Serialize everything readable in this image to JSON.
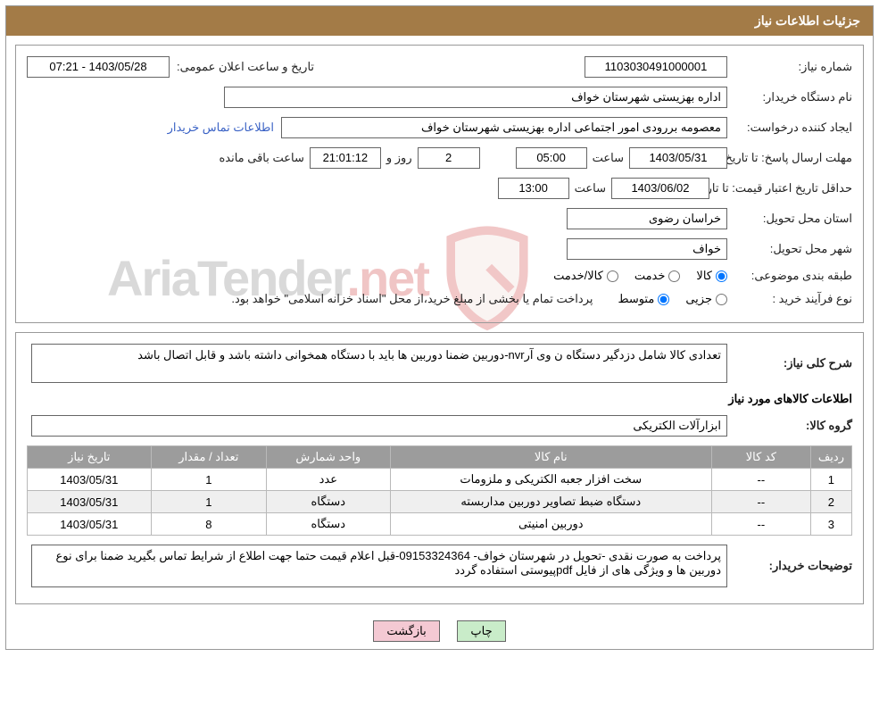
{
  "header": {
    "title": "جزئیات اطلاعات نیاز"
  },
  "top": {
    "need_no": {
      "label": "شماره نیاز:",
      "value": "1103030491000001"
    },
    "announce_dt": {
      "label": "تاریخ و ساعت اعلان عمومی:",
      "value": "1403/05/28 - 07:21"
    },
    "buyer_org": {
      "label": "نام دستگاه خریدار:",
      "value": "اداره بهزیستی شهرستان خواف"
    },
    "requester": {
      "label": "ایجاد کننده درخواست:",
      "value": "معصومه بررودی امور اجتماعی اداره بهزیستی شهرستان خواف"
    },
    "contact_link": "اطلاعات تماس خریدار",
    "deadline": {
      "label": "مهلت ارسال پاسخ:",
      "to_date_lbl": "تا تاریخ:",
      "date": "1403/05/31",
      "time_lbl": "ساعت",
      "time": "05:00",
      "days": "2",
      "days_lbl": "روز و",
      "remain": "21:01:12",
      "remain_lbl": "ساعت باقی مانده"
    },
    "validity": {
      "label": "حداقل تاریخ اعتبار قیمت:",
      "to_date_lbl": "تا تاریخ:",
      "date": "1403/06/02",
      "time_lbl": "ساعت",
      "time": "13:00"
    },
    "delivery_province": {
      "label": "استان محل تحویل:",
      "value": "خراسان رضوی"
    },
    "delivery_city": {
      "label": "شهر محل تحویل:",
      "value": "خواف"
    },
    "subject_class": {
      "label": "طبقه بندی موضوعی:",
      "options": {
        "kala": "کالا",
        "khadamat": "خدمت",
        "both": "کالا/خدمت"
      },
      "selected": "kala"
    },
    "purchase_type": {
      "label": "نوع فرآیند خرید :",
      "options": {
        "jozei": "جزیی",
        "motavaset": "متوسط"
      },
      "selected": "motavaset",
      "note": "پرداخت تمام یا بخشی از مبلغ خرید،از محل \"اسناد خزانه اسلامی\" خواهد بود."
    }
  },
  "detail": {
    "general_desc": {
      "label": "شرح کلی نیاز:",
      "value": "تعدادی کالا شامل دزدگیر دستگاه ن وی آرnvr-دوربین  ضمنا دوربین ها باید با دستگاه همخوانی داشته باشد و قابل اتصال باشد"
    },
    "goods_title": "اطلاعات کالاهای مورد نیاز",
    "group": {
      "label": "گروه کالا:",
      "value": "ابزارآلات الکتریکی"
    },
    "table": {
      "columns": [
        "ردیف",
        "کد کالا",
        "نام کالا",
        "واحد شمارش",
        "تعداد / مقدار",
        "تاریخ نیاز"
      ],
      "rows": [
        [
          "1",
          "--",
          "سخت افزار جعبه الکتریکی و ملزومات",
          "عدد",
          "1",
          "1403/05/31"
        ],
        [
          "2",
          "--",
          "دستگاه ضبط تصاویر دوربین مداربسته",
          "دستگاه",
          "1",
          "1403/05/31"
        ],
        [
          "3",
          "--",
          "دوربین امنیتی",
          "دستگاه",
          "8",
          "1403/05/31"
        ]
      ]
    },
    "buyer_note": {
      "label": "توضیحات خریدار:",
      "value": "پرداخت به صورت نقدی -تحویل در شهرستان خواف- 09153324364-قبل اعلام قیمت حتما جهت اطلاع از شرایط تماس بگیرید ضمنا برای نوع دوربین ها و ویژگی های از فایل pdfپیوستی استفاده گردد"
    }
  },
  "buttons": {
    "print": "چاپ",
    "back": "بازگشت"
  },
  "watermark": {
    "site": "AriaTender",
    "tld": ".net"
  },
  "colors": {
    "header_bg": "#a37b47",
    "border": "#999999",
    "grid_header": "#9c9c9c",
    "link": "#3a62c5",
    "btn_print": "#c9ecc9",
    "btn_back": "#f4c9d3",
    "wm_shield_stroke": "#cf3a3b",
    "wm_shield_fill": "#efd9d2"
  }
}
